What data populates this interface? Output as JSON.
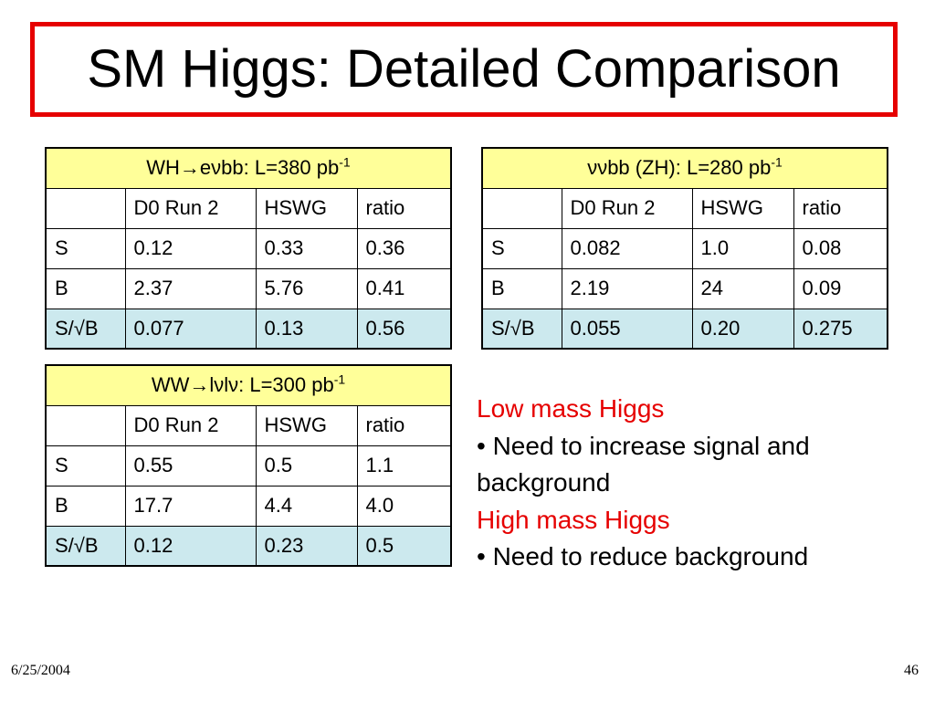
{
  "title": "SM Higgs: Detailed Comparison",
  "tables": [
    {
      "title_main": "WH→eνbb: L=380 pb",
      "title_sup": "-1",
      "headers": [
        "",
        "D0 Run 2",
        "HSWG",
        "ratio"
      ],
      "rows": [
        [
          "S",
          "0.12",
          "0.33",
          "0.36"
        ],
        [
          "B",
          "2.37",
          "5.76",
          "0.41"
        ],
        [
          "S/√B",
          "0.077",
          "0.13",
          "0.56"
        ]
      ]
    },
    {
      "title_main": "ννbb (ZH): L=280 pb",
      "title_sup": "-1",
      "headers": [
        "",
        "D0 Run 2",
        "HSWG",
        "ratio"
      ],
      "rows": [
        [
          "S",
          "0.082",
          "1.0",
          "0.08"
        ],
        [
          "B",
          "2.19",
          "24",
          "0.09"
        ],
        [
          "S/√B",
          "0.055",
          "0.20",
          "0.275"
        ]
      ]
    },
    {
      "title_main": "WW→lνlν: L=300 pb",
      "title_sup": "-1",
      "headers": [
        "",
        "D0 Run 2",
        "HSWG",
        "ratio"
      ],
      "rows": [
        [
          "S",
          "0.55",
          "0.5",
          "1.1"
        ],
        [
          "B",
          "17.7",
          "4.4",
          "4.0"
        ],
        [
          "S/√B",
          "0.12",
          "0.23",
          "0.5"
        ]
      ]
    }
  ],
  "notes": {
    "low_heading": "Low mass Higgs",
    "low_bullet": "• Need to increase signal and background",
    "high_heading": "High mass Higgs",
    "high_bullet": "• Need to reduce background"
  },
  "footer": {
    "date": "6/25/2004",
    "page": "46"
  },
  "colors": {
    "title_border": "#e60000",
    "header_fill": "#ffff99",
    "highlight_fill": "#cce9ee",
    "note_heading": "#e60000"
  }
}
